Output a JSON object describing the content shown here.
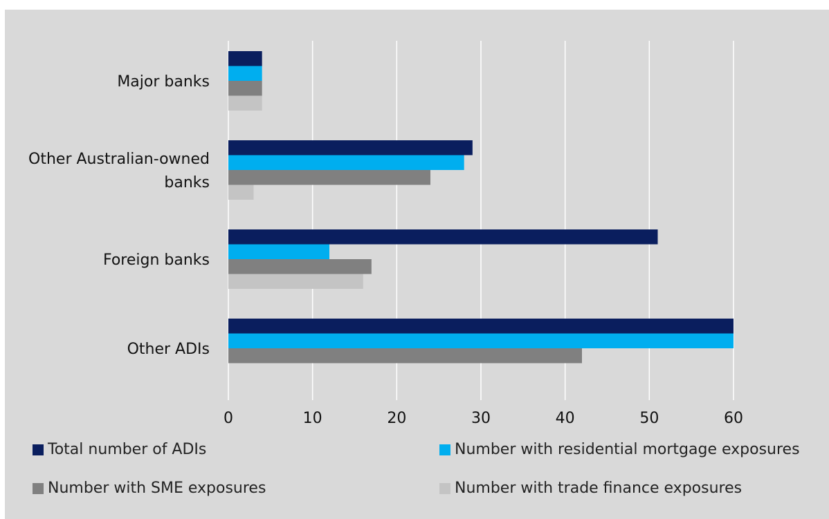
{
  "chart_data": {
    "type": "bar",
    "orientation": "horizontal",
    "title": "",
    "xlabel": "",
    "ylabel": "",
    "xlim": [
      0,
      60
    ],
    "x_ticks": [
      0,
      10,
      20,
      30,
      40,
      50,
      60
    ],
    "grid": true,
    "legend_position": "bottom",
    "categories": [
      "Major banks",
      "Other Australian-owned banks",
      "Foreign banks",
      "Other ADIs"
    ],
    "series": [
      {
        "name": "Total number of ADIs",
        "color": "#0a1e5e",
        "values": [
          4,
          29,
          51,
          60
        ]
      },
      {
        "name": "Number with residential mortgage exposures",
        "color": "#00aeef",
        "values": [
          4,
          28,
          12,
          60
        ]
      },
      {
        "name": "Number with SME exposures",
        "color": "#808080",
        "values": [
          4,
          24,
          17,
          42
        ]
      },
      {
        "name": "Number with trade finance exposures",
        "color": "#c4c4c4",
        "values": [
          4,
          3,
          16,
          0
        ]
      }
    ]
  }
}
